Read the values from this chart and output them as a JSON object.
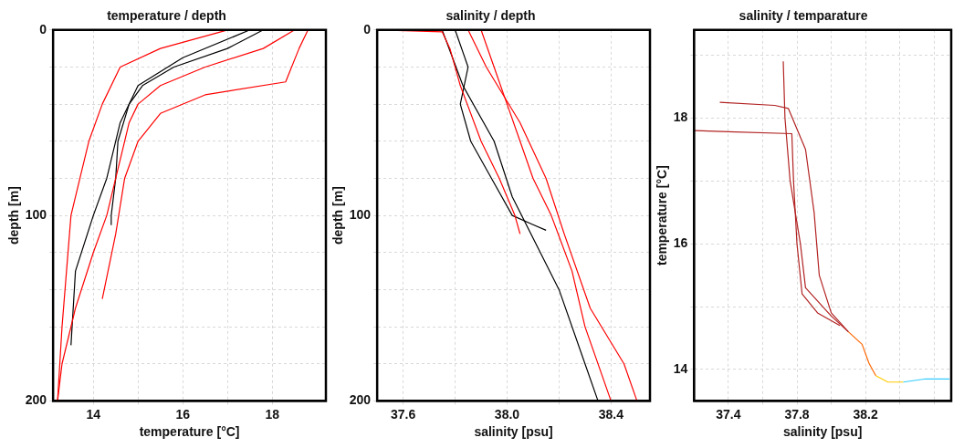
{
  "chart_data": [
    {
      "type": "line",
      "title": "temperature / depth",
      "xlabel": "temperature [°C]",
      "ylabel": "depth [m]",
      "xlim": [
        13.1,
        19.2
      ],
      "ylim": [
        200,
        0
      ],
      "xticks": [
        14,
        {
          "value": 15,
          "label": null
        },
        16,
        {
          "value": 17,
          "label": null
        },
        18
      ],
      "yticks": [
        0,
        {
          "value": 20,
          "label": null
        },
        {
          "value": 40,
          "label": null
        },
        {
          "value": 60,
          "label": null
        },
        {
          "value": 80,
          "label": null
        },
        100,
        {
          "value": 120,
          "label": null
        },
        {
          "value": 140,
          "label": null
        },
        {
          "value": 160,
          "label": null
        },
        {
          "value": 180,
          "label": null
        },
        200
      ],
      "grid": true,
      "marker": "none",
      "line_style": "solid",
      "series": [
        {
          "color": "#ff0000",
          "x": [
            18.5,
            17.8,
            16.5,
            15.5,
            15.0,
            14.8,
            14.7,
            14.5,
            14.3,
            14.0,
            13.6,
            13.3,
            13.2
          ],
          "values": [
            0,
            10,
            20,
            30,
            40,
            50,
            60,
            80,
            100,
            120,
            150,
            180,
            200
          ]
        },
        {
          "color": "#ff0000",
          "x": [
            18.8,
            18.6,
            18.3,
            16.5,
            15.5,
            15.0,
            14.7,
            14.5,
            14.2
          ],
          "values": [
            0,
            10,
            28,
            35,
            45,
            60,
            80,
            110,
            145
          ]
        },
        {
          "color": "#ff0000",
          "x": [
            17.0,
            15.5,
            14.6,
            14.2,
            13.9,
            13.7,
            13.5,
            13.4,
            13.3,
            13.2
          ],
          "values": [
            0,
            10,
            20,
            40,
            60,
            80,
            100,
            130,
            160,
            200
          ]
        },
        {
          "color": "#000000",
          "x": [
            17.8,
            17.0,
            15.8,
            15.1,
            14.8,
            14.55,
            14.5,
            14.4,
            14.4
          ],
          "values": [
            0,
            10,
            20,
            30,
            40,
            60,
            80,
            100,
            105
          ]
        },
        {
          "color": "#000000",
          "x": [
            17.5,
            16.0,
            15.0,
            14.6,
            14.3,
            14.0,
            13.6,
            13.5
          ],
          "values": [
            0,
            15,
            30,
            50,
            80,
            100,
            130,
            170
          ]
        }
      ]
    },
    {
      "type": "line",
      "title": "salinity / depth",
      "xlabel": "salinity [psu]",
      "ylabel": "depth [m]",
      "xlim": [
        37.5,
        38.55
      ],
      "ylim": [
        200,
        0
      ],
      "xticks": [
        37.6,
        {
          "value": 37.8,
          "label": null
        },
        {
          "value": 38.0,
          "label": "38.0"
        },
        {
          "value": 38.2,
          "label": null
        },
        38.4
      ],
      "yticks": [
        0,
        {
          "value": 20,
          "label": null
        },
        {
          "value": 40,
          "label": null
        },
        {
          "value": 60,
          "label": null
        },
        {
          "value": 80,
          "label": null
        },
        100,
        {
          "value": 120,
          "label": null
        },
        {
          "value": 140,
          "label": null
        },
        {
          "value": 160,
          "label": null
        },
        {
          "value": 180,
          "label": null
        },
        200
      ],
      "grid": true,
      "marker": "none",
      "line_style": "solid",
      "series": [
        {
          "color": "#ff0000",
          "x": [
            37.52,
            37.75,
            37.78,
            37.82,
            37.9,
            37.97,
            38.03,
            38.05
          ],
          "values": [
            0,
            1,
            10,
            30,
            60,
            80,
            100,
            110
          ]
        },
        {
          "color": "#ff0000",
          "x": [
            37.9,
            37.95,
            38.0,
            38.05,
            38.1,
            38.17,
            38.25,
            38.3,
            38.4
          ],
          "values": [
            0,
            20,
            40,
            60,
            80,
            100,
            130,
            160,
            200
          ]
        },
        {
          "color": "#ff0000",
          "x": [
            37.85,
            37.92,
            38.05,
            38.15,
            38.22,
            38.32,
            38.45,
            38.5
          ],
          "values": [
            0,
            20,
            50,
            80,
            110,
            150,
            180,
            200
          ]
        },
        {
          "color": "#000000",
          "x": [
            37.8,
            37.85,
            37.82,
            37.86,
            37.94,
            38.02,
            38.1,
            38.15
          ],
          "values": [
            0,
            20,
            40,
            60,
            80,
            100,
            105,
            108
          ]
        },
        {
          "color": "#000000",
          "x": [
            37.75,
            37.83,
            37.95,
            38.02,
            38.2,
            38.3,
            38.35
          ],
          "values": [
            0,
            30,
            60,
            90,
            140,
            180,
            200
          ]
        }
      ]
    },
    {
      "type": "line",
      "title": "salinity / temparature",
      "xlabel": "salinity [psu]",
      "ylabel": "temperature [°C]",
      "xlim": [
        37.2,
        38.7
      ],
      "ylim": [
        13.5,
        19.4
      ],
      "xticks": [
        37.4,
        {
          "value": 37.6,
          "label": null
        },
        37.8,
        {
          "value": 38.0,
          "label": null
        },
        38.2,
        {
          "value": 38.4,
          "label": null
        },
        {
          "value": 38.6,
          "label": null
        }
      ],
      "yticks": [
        14,
        {
          "value": 15,
          "label": null
        },
        16,
        {
          "value": 17,
          "label": null
        },
        18,
        {
          "value": 19,
          "label": null
        }
      ],
      "grid": true,
      "marker": "none",
      "line_style": "solid",
      "series": [
        {
          "color": "#b22222",
          "x": [
            37.2,
            37.4,
            37.77,
            37.78,
            37.8,
            37.83,
            37.92,
            38.05
          ],
          "values": [
            17.8,
            17.78,
            17.75,
            17.0,
            16.0,
            15.2,
            14.9,
            14.7
          ]
        },
        {
          "color": "#b22222",
          "x": [
            37.35,
            37.67,
            37.75,
            37.85,
            37.9,
            37.93,
            38.0,
            38.1
          ],
          "values": [
            18.25,
            18.2,
            18.15,
            17.5,
            16.5,
            15.5,
            14.9,
            14.6
          ]
        },
        {
          "color": "#b22222",
          "x": [
            37.72,
            37.73,
            37.76,
            37.82,
            37.85,
            38.0,
            38.1
          ],
          "values": [
            18.9,
            18.0,
            17.0,
            16.0,
            15.3,
            14.85,
            14.6
          ]
        },
        {
          "color": "#ff6600",
          "x": [
            38.1,
            38.18,
            38.22,
            38.26
          ],
          "values": [
            14.6,
            14.4,
            14.1,
            13.9
          ]
        },
        {
          "color": "#ffcc00",
          "x": [
            38.26,
            38.33,
            38.42
          ],
          "values": [
            13.9,
            13.8,
            13.8
          ]
        },
        {
          "color": "#33ccff",
          "x": [
            38.42,
            38.55,
            38.69
          ],
          "values": [
            13.8,
            13.85,
            13.85
          ]
        }
      ]
    }
  ]
}
